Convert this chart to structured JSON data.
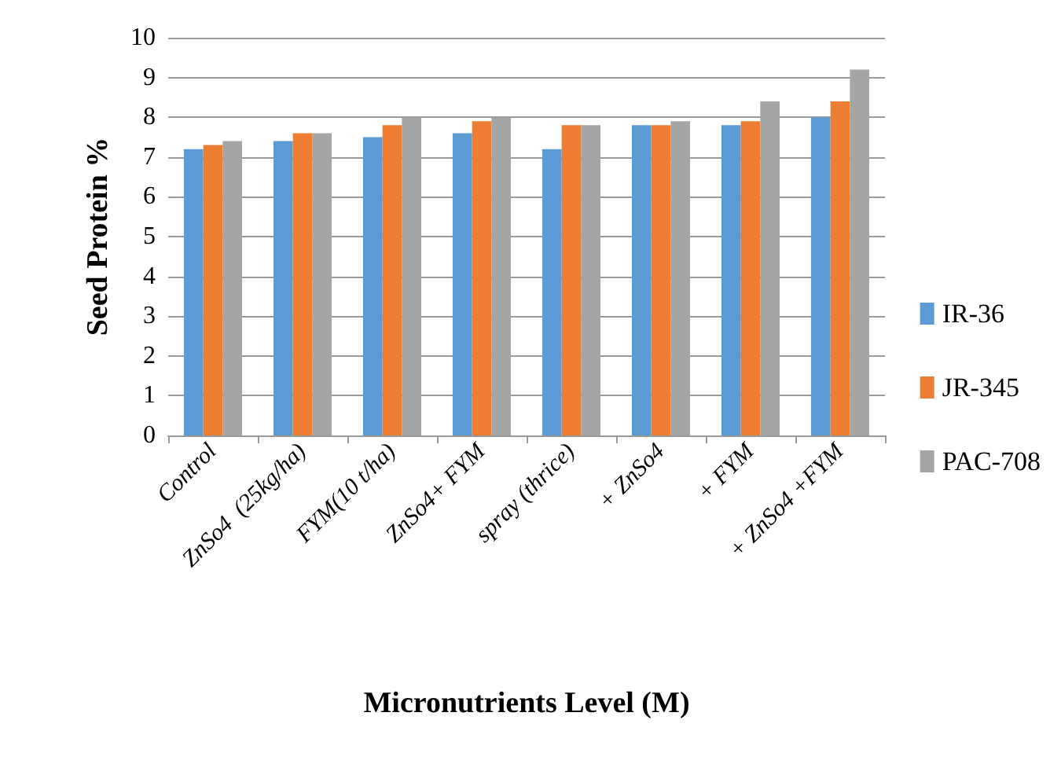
{
  "chart_data": {
    "type": "bar",
    "xlabel": "Micronutrients Level (M)",
    "ylabel": "Seed Protein %",
    "categories": [
      "Control",
      "ZnSo4  (25kg/ha)",
      "FYM(10 t/ha)",
      "ZnSo4+ FYM",
      "spray (thrice)",
      "+ ZnSo4",
      "+ FYM",
      "+ ZnSo4 +FYM"
    ],
    "series": [
      {
        "name": "IR-36",
        "color": "#5b9bd5",
        "values": [
          7.2,
          7.4,
          7.5,
          7.6,
          7.2,
          7.8,
          7.8,
          8.0
        ]
      },
      {
        "name": "JR-345",
        "color": "#ed7d31",
        "values": [
          7.3,
          7.6,
          7.8,
          7.9,
          7.8,
          7.8,
          7.9,
          8.4
        ]
      },
      {
        "name": "PAC-708",
        "color": "#a5a5a5",
        "values": [
          7.4,
          7.6,
          8.0,
          8.0,
          7.8,
          7.9,
          8.4,
          9.2
        ]
      }
    ],
    "ylim": [
      0,
      10
    ],
    "yticks": [
      0,
      1,
      2,
      3,
      4,
      5,
      6,
      7,
      8,
      9,
      10
    ],
    "grid": "y",
    "legend": "right"
  }
}
